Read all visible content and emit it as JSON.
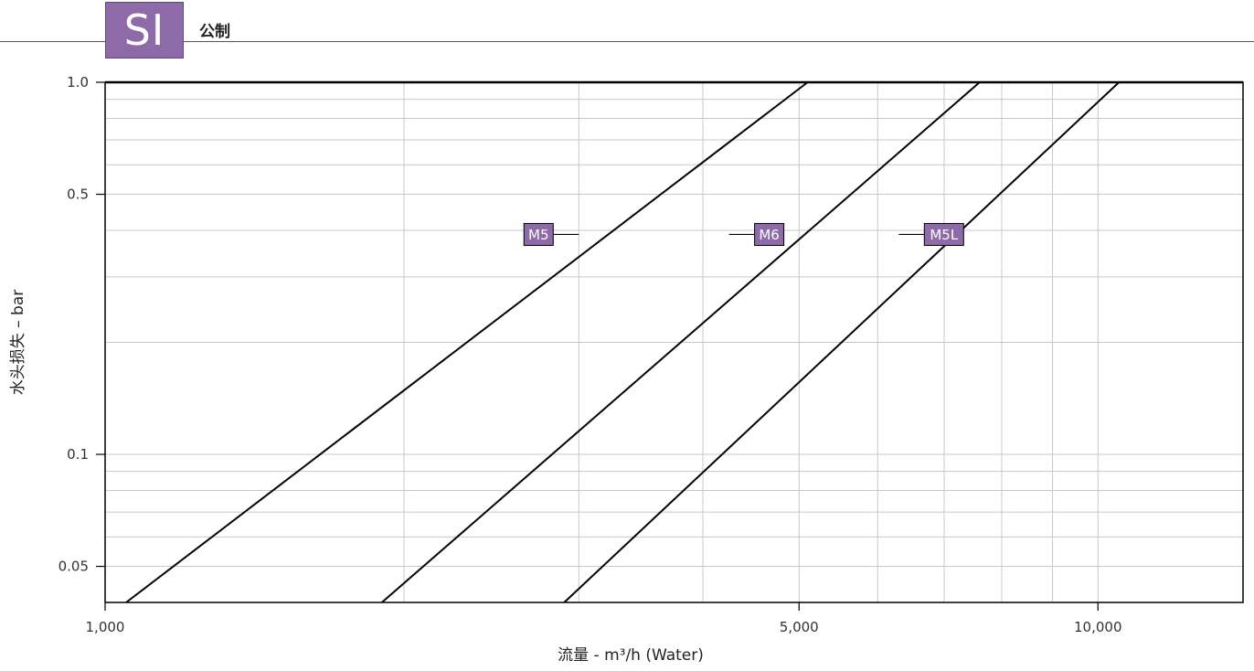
{
  "header": {
    "units_badge": "SI",
    "units_label": "公制"
  },
  "colors": {
    "accent": "#8e6aa8",
    "line": "#000000",
    "grid": "#c8c8c8"
  },
  "chart_data": {
    "type": "line",
    "title": "",
    "xlabel": "流量 - m³/h (Water)",
    "ylabel": "水头损失 – bar",
    "x_scale": "log",
    "y_scale": "log",
    "xlim": [
      1000,
      14000
    ],
    "ylim": [
      0.04,
      1.0
    ],
    "x_ticks": [
      {
        "value": 1000,
        "label": "1,000"
      },
      {
        "value": 5000,
        "label": "5,000"
      },
      {
        "value": 10000,
        "label": "10,000"
      }
    ],
    "y_ticks": [
      {
        "value": 1.0,
        "label": "1.0"
      },
      {
        "value": 0.5,
        "label": "0.5"
      },
      {
        "value": 0.1,
        "label": "0.1"
      },
      {
        "value": 0.05,
        "label": "0.05"
      }
    ],
    "x_grid": [
      1000,
      2000,
      3000,
      4000,
      5000,
      6000,
      7000,
      8000,
      9000,
      10000
    ],
    "y_grid": [
      0.05,
      0.06,
      0.07,
      0.08,
      0.09,
      0.1,
      0.2,
      0.3,
      0.4,
      0.5,
      0.6,
      0.7,
      0.8,
      0.9,
      1.0
    ],
    "grid": true,
    "series": [
      {
        "name": "M5",
        "x": [
          1050,
          5100
        ],
        "y": [
          0.04,
          1.0
        ],
        "label_at": [
          3000,
          0.39
        ],
        "label_side": "left"
      },
      {
        "name": "M6",
        "x": [
          1900,
          7600
        ],
        "y": [
          0.04,
          1.0
        ],
        "label_at": [
          4250,
          0.39
        ],
        "label_side": "right"
      },
      {
        "name": "M5L",
        "x": [
          2900,
          10500
        ],
        "y": [
          0.04,
          1.0
        ],
        "label_at": [
          6300,
          0.39
        ],
        "label_side": "right"
      }
    ]
  }
}
